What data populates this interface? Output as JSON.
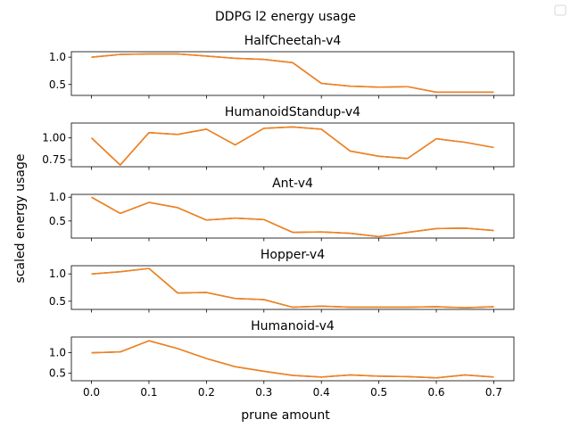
{
  "figure": {
    "title": "DDPG l2 energy usage",
    "xlabel": "prune amount",
    "ylabel": "scaled energy usage"
  },
  "chart_data": {
    "type": "line",
    "x": [
      0.0,
      0.05,
      0.1,
      0.15,
      0.2,
      0.25,
      0.3,
      0.35,
      0.4,
      0.45,
      0.5,
      0.55,
      0.6,
      0.65,
      0.7
    ],
    "xlim": [
      -0.035,
      0.735
    ],
    "xticks": [
      0.0,
      0.1,
      0.2,
      0.3,
      0.4,
      0.5,
      0.6,
      0.7
    ],
    "xtick_labels": [
      "0.0",
      "0.1",
      "0.2",
      "0.3",
      "0.4",
      "0.5",
      "0.6",
      "0.7"
    ],
    "legend": "top-right, empty",
    "series_colors": [
      "#1f77b4",
      "#ff7f0e"
    ],
    "panels": [
      {
        "title": "HalfCheetah-v4",
        "ylim": [
          0.3,
          1.1
        ],
        "yticks": [
          0.5,
          1.0
        ],
        "ytick_labels": [
          "0.5",
          "1.0"
        ],
        "values": [
          1.0,
          1.05,
          1.06,
          1.06,
          1.02,
          0.98,
          0.96,
          0.9,
          0.52,
          0.47,
          0.45,
          0.46,
          0.36,
          0.36,
          0.36
        ]
      },
      {
        "title": "HumanoidStandup-v4",
        "ylim": [
          0.67,
          1.17
        ],
        "yticks": [
          0.75,
          1.0
        ],
        "ytick_labels": [
          "0.75",
          "1.00"
        ],
        "values": [
          1.0,
          0.69,
          1.06,
          1.04,
          1.1,
          0.92,
          1.11,
          1.125,
          1.1,
          0.85,
          0.79,
          0.765,
          0.99,
          0.95,
          0.89
        ]
      },
      {
        "title": "Ant-v4",
        "ylim": [
          0.14,
          1.06
        ],
        "yticks": [
          0.5,
          1.0
        ],
        "ytick_labels": [
          "0.5",
          "1.0"
        ],
        "values": [
          1.0,
          0.66,
          0.89,
          0.78,
          0.52,
          0.56,
          0.53,
          0.26,
          0.27,
          0.24,
          0.17,
          0.26,
          0.34,
          0.35,
          0.3
        ]
      },
      {
        "title": "Hopper-v4",
        "ylim": [
          0.35,
          1.15
        ],
        "yticks": [
          0.5,
          1.0
        ],
        "ytick_labels": [
          "0.5",
          "1.0"
        ],
        "values": [
          1.0,
          1.04,
          1.1,
          0.65,
          0.66,
          0.55,
          0.53,
          0.39,
          0.41,
          0.39,
          0.39,
          0.39,
          0.4,
          0.38,
          0.4
        ]
      },
      {
        "title": "Humanoid-v4",
        "ylim": [
          0.32,
          1.38
        ],
        "yticks": [
          0.5,
          1.0
        ],
        "ytick_labels": [
          "0.5",
          "1.0"
        ],
        "values": [
          1.0,
          1.02,
          1.29,
          1.1,
          0.86,
          0.66,
          0.55,
          0.45,
          0.41,
          0.46,
          0.43,
          0.42,
          0.39,
          0.46,
          0.41
        ]
      }
    ]
  }
}
